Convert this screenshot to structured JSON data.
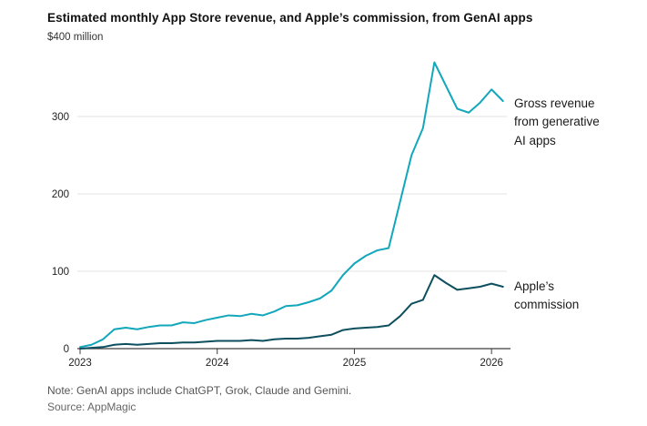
{
  "title": "Estimated monthly App Store revenue, and Apple’s commission, from GenAI apps",
  "unit_label": "$400 million",
  "note": "Note: GenAI apps include ChatGPT, Grok, Claude and Gemini.",
  "source": "Source: AppMagic",
  "labels": {
    "gross": "Gross revenue\nfrom generative\nAI apps",
    "commission": "Apple’s\ncommission"
  },
  "colors": {
    "gross": "#12a7bb",
    "commission": "#0d4f5e",
    "grid": "#e3e3e3",
    "axis": "#3d3d3d",
    "tick_text": "#222222"
  },
  "chart_data": {
    "type": "line",
    "title": "Estimated monthly App Store revenue, and Apple's commission, from GenAI apps",
    "ylabel": "$ million",
    "ylim": [
      0,
      400
    ],
    "y_ticks": [
      0,
      100,
      200,
      300
    ],
    "y_top_label": "$400 million",
    "year_ticks": [
      2023,
      2024,
      2025,
      2026
    ],
    "x_unit": "month",
    "grid": "horizontal",
    "legend_position": "right-annotations",
    "x": [
      "2023-01",
      "2023-02",
      "2023-03",
      "2023-04",
      "2023-05",
      "2023-06",
      "2023-07",
      "2023-08",
      "2023-09",
      "2023-10",
      "2023-11",
      "2023-12",
      "2024-01",
      "2024-02",
      "2024-03",
      "2024-04",
      "2024-05",
      "2024-06",
      "2024-07",
      "2024-08",
      "2024-09",
      "2024-10",
      "2024-11",
      "2024-12",
      "2025-01",
      "2025-02",
      "2025-03",
      "2025-04",
      "2025-05",
      "2025-06",
      "2025-07",
      "2025-08",
      "2025-09",
      "2025-10",
      "2025-11",
      "2025-12",
      "2026-01",
      "2026-02"
    ],
    "series": [
      {
        "name": "Gross revenue from generative AI apps",
        "color_key": "gross",
        "values": [
          2,
          5,
          12,
          25,
          27,
          25,
          28,
          30,
          30,
          34,
          33,
          37,
          40,
          43,
          42,
          45,
          43,
          48,
          55,
          56,
          60,
          65,
          75,
          95,
          110,
          120,
          127,
          130,
          190,
          250,
          285,
          370,
          340,
          310,
          305,
          318,
          335,
          320
        ]
      },
      {
        "name": "Apple's commission",
        "color_key": "commission",
        "values": [
          0,
          1,
          2,
          5,
          6,
          5,
          6,
          7,
          7,
          8,
          8,
          9,
          10,
          10,
          10,
          11,
          10,
          12,
          13,
          13,
          14,
          16,
          18,
          24,
          26,
          27,
          28,
          30,
          42,
          58,
          63,
          95,
          85,
          76,
          78,
          80,
          84,
          80
        ]
      }
    ]
  }
}
